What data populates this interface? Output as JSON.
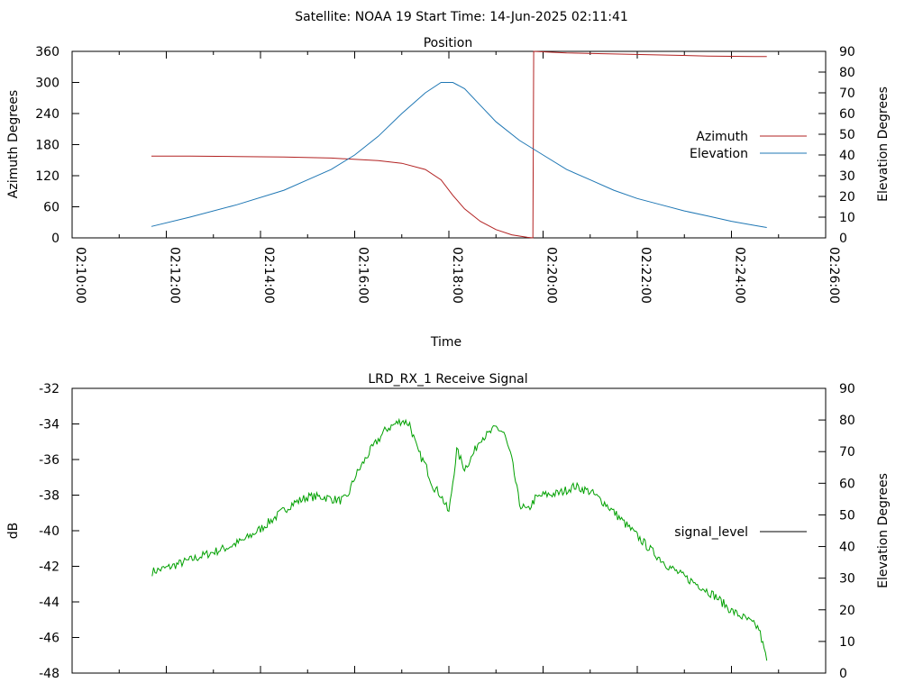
{
  "header": {
    "title": "Satellite: NOAA 19    Start Time: 14-Jun-2025 02:11:41"
  },
  "chart_data": [
    {
      "type": "line",
      "title": "Position",
      "xlabel": "Time",
      "ylabel": "Azimuth Degrees",
      "y2label": "Elevation Degrees",
      "x_ticks": [
        "02:10:00",
        "02:12:00",
        "02:14:00",
        "02:16:00",
        "02:18:00",
        "02:20:00",
        "02:22:00",
        "02:24:00",
        "02:26:00"
      ],
      "xlim": [
        "02:10:00",
        "02:26:00"
      ],
      "ylim": [
        0,
        360
      ],
      "y_ticks": [
        0,
        60,
        120,
        180,
        240,
        300,
        360
      ],
      "y2lim": [
        0,
        90
      ],
      "y2_ticks": [
        0,
        10,
        20,
        30,
        40,
        50,
        60,
        70,
        80,
        90
      ],
      "legend_position": "right",
      "series": [
        {
          "name": "Azimuth",
          "axis": "y",
          "color": "#b22222",
          "x": [
            "02:11:41",
            "02:12:30",
            "02:13:30",
            "02:14:30",
            "02:15:30",
            "02:16:30",
            "02:17:00",
            "02:17:30",
            "02:17:50",
            "02:18:05",
            "02:18:20",
            "02:18:40",
            "02:19:00",
            "02:19:20",
            "02:19:40",
            "02:19:47",
            "02:19:48",
            "02:20:30",
            "02:21:30",
            "02:22:30",
            "02:23:30",
            "02:24:30",
            "02:24:45"
          ],
          "values": [
            158,
            158,
            157,
            156,
            154,
            149,
            144,
            132,
            112,
            82,
            56,
            32,
            16,
            6,
            1,
            0,
            360,
            357,
            355,
            353,
            351,
            350,
            350
          ]
        },
        {
          "name": "Elevation",
          "axis": "y2",
          "color": "#1f77b4",
          "x": [
            "02:11:41",
            "02:12:30",
            "02:13:30",
            "02:14:30",
            "02:15:00",
            "02:15:30",
            "02:16:00",
            "02:16:30",
            "02:17:00",
            "02:17:30",
            "02:17:50",
            "02:18:05",
            "02:18:20",
            "02:18:40",
            "02:19:00",
            "02:19:30",
            "02:20:00",
            "02:20:30",
            "02:21:00",
            "02:21:30",
            "02:22:00",
            "02:22:30",
            "02:23:00",
            "02:23:30",
            "02:24:00",
            "02:24:30",
            "02:24:45"
          ],
          "values": [
            5.5,
            10,
            16,
            23,
            28,
            33,
            40,
            49,
            60,
            70,
            75,
            75,
            72,
            64,
            56,
            47,
            40,
            33,
            28,
            23,
            19,
            16,
            13,
            10.5,
            8,
            6,
            5
          ]
        }
      ]
    },
    {
      "type": "line",
      "title": "LRD_RX_1 Receive Signal",
      "ylabel": "dB",
      "y2label": "Elevation Degrees",
      "xlim": [
        "02:10:00",
        "02:26:00"
      ],
      "ylim": [
        -48,
        -32
      ],
      "y_ticks": [
        -48,
        -46,
        -44,
        -42,
        -40,
        -38,
        -36,
        -34,
        -32
      ],
      "y2lim": [
        0,
        90
      ],
      "y2_ticks": [
        0,
        10,
        20,
        30,
        40,
        50,
        60,
        70,
        80,
        90
      ],
      "legend_position": "right",
      "series": [
        {
          "name": "signal_level",
          "color": "#00a000",
          "x": [
            "02:11:42",
            "02:12:00",
            "02:12:20",
            "02:12:40",
            "02:13:00",
            "02:13:20",
            "02:13:40",
            "02:14:00",
            "02:14:20",
            "02:14:40",
            "02:15:00",
            "02:15:20",
            "02:15:40",
            "02:15:50",
            "02:16:00",
            "02:16:20",
            "02:16:40",
            "02:17:00",
            "02:17:10",
            "02:17:20",
            "02:17:30",
            "02:17:40",
            "02:17:50",
            "02:18:00",
            "02:18:10",
            "02:18:20",
            "02:18:30",
            "02:18:40",
            "02:18:50",
            "02:19:00",
            "02:19:10",
            "02:19:20",
            "02:19:30",
            "02:19:40",
            "02:19:50",
            "02:20:00",
            "02:20:20",
            "02:20:40",
            "02:21:00",
            "02:21:20",
            "02:21:40",
            "02:22:00",
            "02:22:20",
            "02:22:40",
            "02:23:00",
            "02:23:20",
            "02:23:40",
            "02:24:00",
            "02:24:20",
            "02:24:35",
            "02:24:45"
          ],
          "values": [
            -42.3,
            -42.1,
            -41.8,
            -41.5,
            -41.2,
            -40.9,
            -40.5,
            -39.9,
            -39.2,
            -38.5,
            -38.1,
            -38.1,
            -38.3,
            -38.2,
            -37.0,
            -35.5,
            -34.3,
            -33.8,
            -34.0,
            -35.5,
            -36.3,
            -37.5,
            -38.0,
            -39.0,
            -35.5,
            -36.5,
            -35.8,
            -34.8,
            -34.6,
            -34.2,
            -34.5,
            -36.0,
            -38.5,
            -38.9,
            -38.2,
            -38.0,
            -37.9,
            -37.5,
            -37.8,
            -38.5,
            -39.4,
            -40.3,
            -41.2,
            -42.0,
            -42.6,
            -43.1,
            -43.7,
            -44.5,
            -45.0,
            -45.5,
            -47.3
          ]
        }
      ]
    }
  ]
}
